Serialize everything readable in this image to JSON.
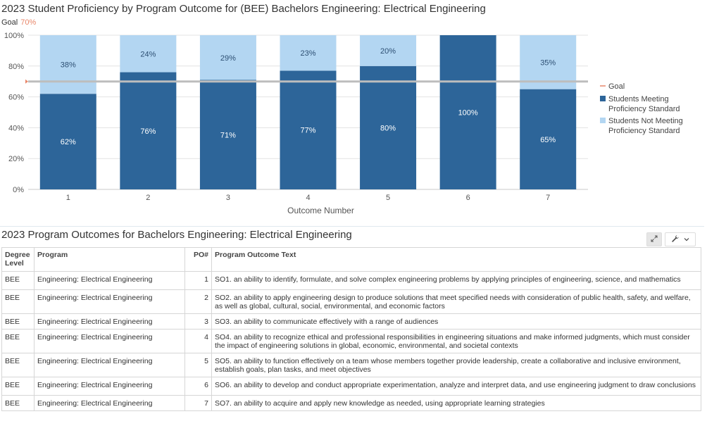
{
  "chart_data": {
    "type": "bar",
    "stacked": true,
    "title": "2023 Student Proficiency by Program Outcome for (BEE) Bachelors Engineering: Electrical Engineering",
    "goal_label": "Goal",
    "goal_value_label": "70%",
    "goal": 70,
    "categories": [
      "1",
      "2",
      "3",
      "4",
      "5",
      "6",
      "7"
    ],
    "xlabel": "Outcome Number",
    "ylabel": "",
    "ylim": [
      0,
      100
    ],
    "yticks": [
      "0%",
      "20%",
      "40%",
      "60%",
      "80%",
      "100%"
    ],
    "series": [
      {
        "name": "Students Meeting Proficiency Standard",
        "color": "#2d6599",
        "values": [
          62,
          76,
          71,
          77,
          80,
          100,
          65
        ],
        "labels": [
          "62%",
          "76%",
          "71%",
          "77%",
          "80%",
          "100%",
          "65%"
        ]
      },
      {
        "name": "Students Not Meeting Proficiency Standard",
        "color": "#b3d6f2",
        "values": [
          38,
          24,
          29,
          23,
          20,
          0,
          35
        ],
        "labels": [
          "38%",
          "24%",
          "29%",
          "23%",
          "20%",
          "",
          "35%"
        ]
      }
    ],
    "legend": [
      {
        "lines": [
          "Goal"
        ],
        "kind": "line",
        "color": "#e9876a"
      },
      {
        "lines": [
          "Students Meeting",
          "Proficiency Standard"
        ],
        "kind": "box",
        "color": "#2d6599"
      },
      {
        "lines": [
          "Students Not Meeting",
          "Proficiency Standard"
        ],
        "kind": "box",
        "color": "#b3d6f2"
      }
    ],
    "legend_position": "right",
    "grid": true
  },
  "table": {
    "title": "2023 Program Outcomes for Bachelors Engineering: Electrical Engineering",
    "headers": {
      "degree_line1": "Degree",
      "degree_line2": "Level",
      "program": "Program",
      "po": "PO#",
      "text": "Program Outcome Text"
    },
    "rows": [
      {
        "degree": "BEE",
        "program": "Engineering: Electrical Engineering",
        "po": "1",
        "text": "SO1. an ability to identify, formulate, and solve complex engineering problems by applying principles of engineering, science, and mathematics"
      },
      {
        "degree": "BEE",
        "program": "Engineering: Electrical Engineering",
        "po": "2",
        "text": "SO2. an ability to apply engineering design to produce solutions that meet specified needs with consideration of public health, safety, and welfare, as well as global, cultural, social, environmental, and economic factors"
      },
      {
        "degree": "BEE",
        "program": "Engineering: Electrical Engineering",
        "po": "3",
        "text": "SO3. an ability to communicate effectively with a range of audiences"
      },
      {
        "degree": "BEE",
        "program": "Engineering: Electrical Engineering",
        "po": "4",
        "text": "SO4. an ability to recognize ethical and professional responsibilities in engineering situations and make informed judgments, which must consider the impact of engineering solutions in global, economic, environmental, and societal contexts"
      },
      {
        "degree": "BEE",
        "program": "Engineering: Electrical Engineering",
        "po": "5",
        "text": "SO5. an ability to function effectively on a team whose members together provide leadership, create a collaborative and inclusive environment, establish goals, plan tasks, and meet objectives"
      },
      {
        "degree": "BEE",
        "program": "Engineering: Electrical Engineering",
        "po": "6",
        "text": "SO6. an ability to develop and conduct appropriate experimentation, analyze and interpret data, and use engineering judgment to draw conclusions"
      },
      {
        "degree": "BEE",
        "program": "Engineering: Electrical Engineering",
        "po": "7",
        "text": "SO7. an ability to acquire and apply new knowledge as needed, using appropriate learning strategies"
      }
    ]
  },
  "toolbar": {
    "expand_icon": "expand-icon",
    "wrench_icon": "wrench-icon",
    "chevron_icon": "chevron-down-icon"
  }
}
